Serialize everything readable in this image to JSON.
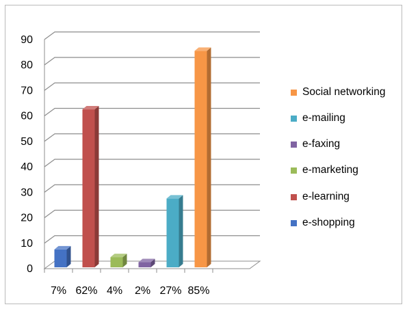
{
  "chart_data": {
    "type": "bar",
    "style": "3d-column",
    "categories": [
      "7%",
      "62%",
      "4%",
      "2%",
      "27%",
      "85%"
    ],
    "series": [
      {
        "name": "e-shopping",
        "values": [
          7,
          0,
          0,
          0,
          0,
          0
        ],
        "color": "#4472c4"
      },
      {
        "name": "e-learning",
        "values": [
          0,
          62,
          0,
          0,
          0,
          0
        ],
        "color": "#c0504d"
      },
      {
        "name": "e-marketing",
        "values": [
          0,
          0,
          4,
          0,
          0,
          0
        ],
        "color": "#9bbb59"
      },
      {
        "name": "e-faxing",
        "values": [
          0,
          0,
          0,
          2,
          0,
          0
        ],
        "color": "#8064a2"
      },
      {
        "name": "e-mailing",
        "values": [
          0,
          0,
          0,
          0,
          27,
          0
        ],
        "color": "#4bacc6"
      },
      {
        "name": "Social networking",
        "values": [
          0,
          0,
          0,
          0,
          0,
          85
        ],
        "color": "#f79646"
      }
    ],
    "y_ticks": [
      "0",
      "10",
      "20",
      "30",
      "40",
      "50",
      "60",
      "70",
      "80",
      "90"
    ],
    "ylim": [
      0,
      90
    ],
    "title": "",
    "xlabel": "",
    "ylabel": "",
    "grid": true,
    "legend_position": "right",
    "legend_order": [
      "Social networking",
      "e-mailing",
      "e-faxing",
      "e-marketing",
      "e-learning",
      "e-shopping"
    ]
  }
}
